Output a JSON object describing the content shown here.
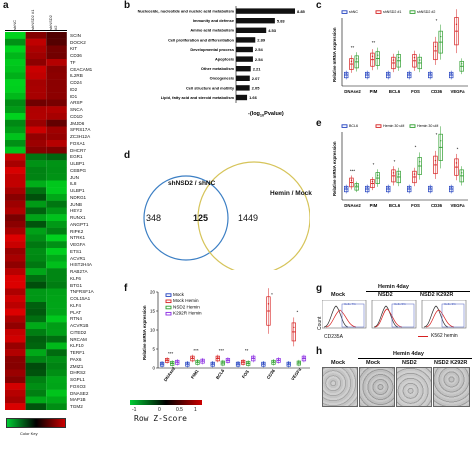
{
  "panel_labels": {
    "a": "a",
    "b": "b",
    "c": "c",
    "d": "d",
    "e": "e",
    "f": "f",
    "g": "g",
    "h": "h"
  },
  "panel_a": {
    "column_labels": [
      "shNC",
      "shNSD2 #1",
      "shNSD2 #2"
    ],
    "genes": [
      "SCIN",
      "DOCK2",
      "KIT",
      "CD36",
      "TF",
      "CEACAM1",
      "IL2RB",
      "CD24",
      "ID2",
      "ID1",
      "ARSP",
      "SNCA",
      "CD1D",
      "JMJD6",
      "SFRS17A",
      "ZC3H12A",
      "FOXA1",
      "DHCR7",
      "EGR1",
      "ULBP1",
      "CEBPG",
      "JUN",
      "IL8",
      "ULBP1",
      "NDRG1",
      "JUNB",
      "HEY2",
      "RUNX1",
      "ANGPT1",
      "RIPK2",
      "NTRK1",
      "VEGFA",
      "ETS1",
      "ACVR1",
      "HIST2H4A",
      "RAB27A",
      "KLF6",
      "BTG1",
      "TNFRSF1A",
      "COL15A1",
      "KLF4",
      "PLAT",
      "RTN4",
      "ACVR1B",
      "CITED2",
      "NRCAM",
      "KLF10",
      "TERF1",
      "PAX6",
      "ZMIZ1",
      "DHRS2",
      "SGPL1",
      "FOXO3",
      "DNASE2",
      "MAP1B",
      "TGM2"
    ],
    "color_key_label": "Color Key"
  },
  "panel_b": {
    "categories": [
      "Nucleoside, nucleotide and nucleic acid metabolism",
      "Immunity and defense",
      "Amino acid metabolism",
      "Cell proliferation and differentiation",
      "Developmental process",
      "Apoptosis",
      "Other metabolism",
      "Oncogenesis",
      "Cell structure and motility",
      "Lipid, fatty acid and steroid metabolism"
    ],
    "values": [
      8.85,
      5.83,
      4.53,
      2.89,
      2.54,
      2.54,
      2.21,
      2.07,
      2.05,
      1.66
    ],
    "value_labels": [
      "8.85",
      "5.83",
      "4.53",
      "2.89",
      "2.54",
      "2.54",
      "2.21",
      "2.07",
      "2.05",
      "1.66"
    ],
    "xlabel": "-(log",
    "xlabel_sub": "10",
    "xlabel_tail": "Pvalue)"
  },
  "panel_c": {
    "ylabel": "Relative mRNA expression",
    "legend": [
      "shNC",
      "shNSD2 #1",
      "shNSD2 #2"
    ],
    "categories": [
      "DNAse2",
      "PIM",
      "BCL6",
      "FOS",
      "CD36",
      "VEGFa"
    ],
    "colors": [
      "#1f3fbf",
      "#d62020",
      "#2e9e2e"
    ],
    "sig": [
      "**",
      "**",
      "",
      "",
      "*",
      ""
    ],
    "chart_data": {
      "type": "box",
      "series": [
        {
          "name": "shNC",
          "values": [
            1.0,
            1.0,
            1.0,
            1.0,
            1.0,
            1.0
          ]
        },
        {
          "name": "shNSD2 #1",
          "values": [
            2.0,
            2.4,
            2.1,
            2.3,
            3.2,
            5.0
          ]
        },
        {
          "name": "shNSD2 #2",
          "values": [
            2.2,
            2.5,
            2.3,
            2.1,
            4.0,
            1.8
          ]
        }
      ]
    }
  },
  "panel_d": {
    "left_label": "shNSD2 / shNC",
    "right_label": "Hemin / Mock",
    "left_only": "348",
    "overlap": "125",
    "right_only": "1449"
  },
  "panel_e": {
    "ylabel": "Relative mRNA expression",
    "legend": [
      "BCL6",
      "Hemin 30 uM",
      "Hemin 30 uM"
    ],
    "categories": [
      "DNAse2",
      "PIM",
      "BCL6",
      "FOS",
      "CD36",
      "VEGFa"
    ],
    "colors": [
      "#1f3fbf",
      "#d62020",
      "#2e9e2e"
    ],
    "sig": [
      "***",
      "*",
      "*",
      "*",
      "*",
      "*"
    ],
    "chart_data": {
      "type": "box",
      "series": [
        {
          "name": "Control",
          "values": [
            1.0,
            1.0,
            1.0,
            1.0,
            1.0,
            1.0
          ]
        },
        {
          "name": "Hemin A",
          "values": [
            1.6,
            1.5,
            2.2,
            2.1,
            3.2,
            3.0
          ]
        },
        {
          "name": "Hemin B",
          "values": [
            1.2,
            2.0,
            2.1,
            3.1,
            4.8,
            2.2
          ]
        }
      ]
    }
  },
  "panel_f": {
    "ylabel": "Relative mRNA expression",
    "legend": [
      "Mock",
      "Mock Hemin",
      "NSD2 Hemin",
      "K292R Hemin"
    ],
    "categories": [
      "DNAse2",
      "PIM1",
      "BCL6",
      "FOS",
      "CD36",
      "VEGFa"
    ],
    "yticks": [
      "0",
      "5",
      "10",
      "15",
      "20"
    ],
    "colors": [
      "#1f3fbf",
      "#d62020",
      "#2e9e2e",
      "#8a2be2"
    ],
    "sig": [
      "***",
      "***",
      "***",
      "**",
      "*",
      "*"
    ],
    "chart_data": {
      "type": "box",
      "ylim": [
        0,
        20
      ],
      "series": [
        {
          "name": "Mock",
          "values": [
            1.0,
            1.0,
            1.0,
            1.0,
            1.0,
            1.0
          ]
        },
        {
          "name": "Mock Hemin",
          "values": [
            2.0,
            2.5,
            2.5,
            1.5,
            15.0,
            9.5
          ]
        },
        {
          "name": "NSD2 Hemin",
          "values": [
            1.2,
            1.5,
            1.3,
            1.2,
            1.5,
            1.3
          ]
        },
        {
          "name": "K292R Hemin",
          "values": [
            1.5,
            1.8,
            2.0,
            2.5,
            2.0,
            2.5
          ]
        }
      ]
    }
  },
  "panel_zscore": {
    "ticks": [
      "-1",
      "0",
      "0.5",
      "1"
    ],
    "label": "Row Z-Score"
  },
  "panel_g": {
    "group_label": "Hemin  4day",
    "columns": [
      "Mock",
      "NSD2",
      "NSD2 K292R"
    ],
    "ylabel": "Count",
    "xlabel": "CD235A",
    "legend": "K562 hemin",
    "gate_labels": [
      "Cells 7%",
      "Cells 5%",
      "Cells 3%"
    ]
  },
  "panel_h": {
    "group_label": "Hemin  4day",
    "columns": [
      "Mock",
      "Mock",
      "NSD2",
      "NSD2 K292R"
    ]
  }
}
